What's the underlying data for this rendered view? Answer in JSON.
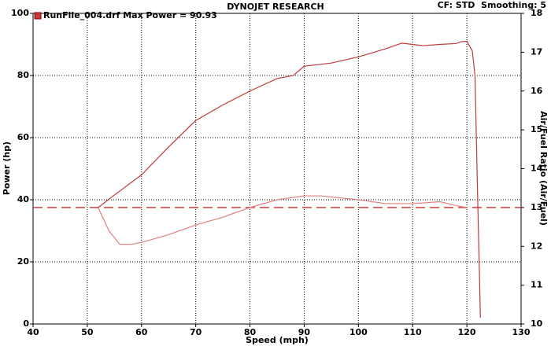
{
  "chart_data": {
    "type": "line",
    "title": "DYNOJET RESEARCH",
    "subtitle": "CF: STD  Smoothing: 5",
    "x_label": "Speed (mph)",
    "y_label": "Power (hp)",
    "y2_label": "Air/Fuel Ratio (Air/Fuel)",
    "xlim": [
      40,
      130
    ],
    "xticks": [
      40,
      50,
      60,
      70,
      80,
      90,
      100,
      110,
      120,
      130
    ],
    "ylim": [
      0,
      100
    ],
    "yticks": [
      0,
      20,
      40,
      60,
      80,
      100
    ],
    "y2lim": [
      10,
      18
    ],
    "y2ticks": [
      10,
      11,
      12,
      13,
      14,
      15,
      16,
      17,
      18
    ],
    "y2_reference": 13,
    "reference_color": "#d04040",
    "grid": true,
    "series": [
      {
        "name": "RunFile_004.drf Max Power = 90.93",
        "color": "#c0393b",
        "x": [
          52,
          55,
          60,
          65,
          70,
          75,
          80,
          85,
          88,
          90,
          95,
          100,
          105,
          108,
          110,
          112,
          115,
          118,
          119,
          120,
          121,
          121.5,
          122,
          122.5
        ],
        "values": [
          37.5,
          41.5,
          48,
          57,
          65.5,
          70.5,
          75,
          79,
          80,
          83,
          84,
          86,
          88.6,
          90.4,
          90,
          89.6,
          90,
          90.3,
          90.9,
          91,
          88,
          80,
          40,
          2
        ]
      },
      {
        "color": "#e08080",
        "axis": "y2",
        "x": [
          52,
          54,
          56,
          58,
          60,
          65,
          70,
          75,
          80,
          85,
          90,
          93,
          100,
          105,
          110,
          115,
          118,
          120
        ],
        "values": [
          13.0,
          12.4,
          12.05,
          12.05,
          12.1,
          12.3,
          12.55,
          12.75,
          13.0,
          13.2,
          13.3,
          13.3,
          13.2,
          13.1,
          13.1,
          13.15,
          13.05,
          13.0
        ]
      }
    ]
  }
}
